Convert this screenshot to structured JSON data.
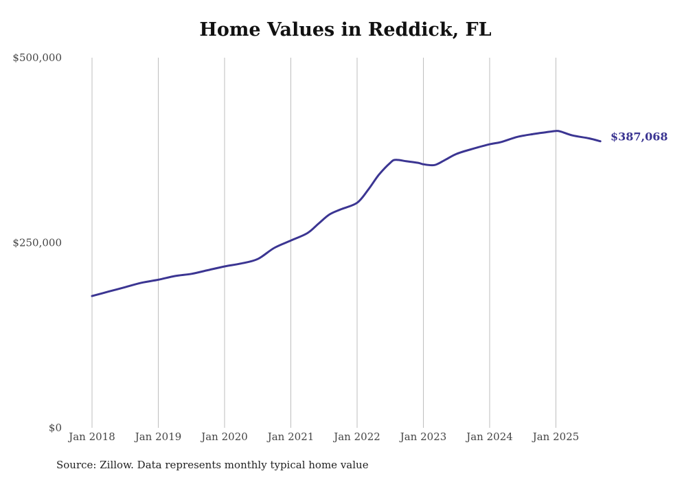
{
  "chart_data": {
    "type": "line",
    "title": "Home Values in Reddick, FL",
    "xlabel": "",
    "ylabel": "",
    "ylim": [
      0,
      500000
    ],
    "y_ticks": [
      0,
      250000,
      500000
    ],
    "y_tick_labels": [
      "$0",
      "$250,000",
      "$500,000"
    ],
    "x_ticks": [
      2018,
      2019,
      2020,
      2021,
      2022,
      2023,
      2024,
      2025
    ],
    "x_tick_labels": [
      "Jan 2018",
      "Jan 2019",
      "Jan 2020",
      "Jan 2021",
      "Jan 2022",
      "Jan 2023",
      "Jan 2024",
      "Jan 2025"
    ],
    "xlim": [
      2018,
      2025.67
    ],
    "grid": "vertical",
    "series": [
      {
        "name": "Typical home value",
        "color": "#3b3592",
        "x": [
          2018.0,
          2018.25,
          2018.5,
          2018.75,
          2019.0,
          2019.25,
          2019.5,
          2019.75,
          2020.0,
          2020.25,
          2020.5,
          2020.75,
          2021.0,
          2021.25,
          2021.42,
          2021.58,
          2021.75,
          2022.0,
          2022.17,
          2022.33,
          2022.5,
          2022.58,
          2022.75,
          2022.92,
          2023.0,
          2023.17,
          2023.33,
          2023.5,
          2023.75,
          2024.0,
          2024.17,
          2024.42,
          2024.67,
          2024.83,
          2025.0,
          2025.08,
          2025.25,
          2025.5,
          2025.67
        ],
        "values": [
          178000,
          184000,
          190000,
          196000,
          200000,
          205000,
          208000,
          213000,
          218000,
          222000,
          228000,
          243000,
          253000,
          263000,
          276000,
          288000,
          295000,
          304000,
          322000,
          342000,
          358000,
          362000,
          360000,
          358000,
          356000,
          355000,
          362000,
          370000,
          377000,
          383000,
          386000,
          393000,
          397000,
          399000,
          401000,
          400000,
          395000,
          391000,
          387068
        ]
      }
    ],
    "end_label": "$387,068"
  },
  "source_note": "Source: Zillow. Data represents monthly typical home value"
}
